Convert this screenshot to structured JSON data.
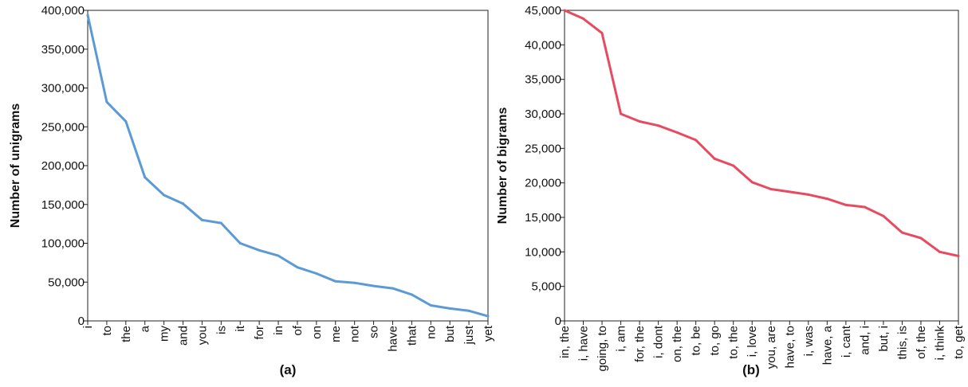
{
  "chart_data": [
    {
      "type": "line",
      "caption": "(a)",
      "ylabel": "Number of unigrams",
      "xlabel": "",
      "ylim": [
        0,
        400000
      ],
      "yticks": [
        0,
        50000,
        100000,
        150000,
        200000,
        250000,
        300000,
        350000,
        400000
      ],
      "ytick_labels": [
        "0",
        "50,000",
        "100,000",
        "150,000",
        "200,000",
        "250,000",
        "300,000",
        "350,000",
        "400,000"
      ],
      "grid": false,
      "color": "#5b9bd5",
      "categories": [
        "i",
        "to",
        "the",
        "a",
        "my",
        "and",
        "you",
        "is",
        "it",
        "for",
        "in",
        "of",
        "on",
        "me",
        "not",
        "so",
        "have",
        "that",
        "no",
        "but",
        "just",
        "yet"
      ],
      "series": [
        {
          "values": [
            394000,
            282000,
            257000,
            185000,
            162000,
            151000,
            130000,
            126000,
            100000,
            91000,
            84000,
            69000,
            61000,
            51000,
            49000,
            45000,
            42000,
            34000,
            20000,
            16000,
            13000,
            6000
          ]
        }
      ]
    },
    {
      "type": "line",
      "caption": "(b)",
      "ylabel": "Number of bigrams",
      "xlabel": "",
      "ylim": [
        0,
        45000
      ],
      "yticks": [
        0,
        5000,
        10000,
        15000,
        20000,
        25000,
        30000,
        35000,
        40000,
        45000
      ],
      "ytick_labels": [
        "0",
        "5,000",
        "10,000",
        "15,000",
        "20,000",
        "25,000",
        "30,000",
        "35,000",
        "40,000",
        "45,000"
      ],
      "grid": false,
      "color": "#e84a5f",
      "categories": [
        "in, the",
        "i, have",
        "going, to",
        "i, am",
        "for, the",
        "i, dont",
        "on, the",
        "to, be",
        "to, go",
        "to, the",
        "i, love",
        "you, are",
        "have, to",
        "i, was",
        "have, a",
        "i, cant",
        "and, i",
        "but, i",
        "this, is",
        "of, the",
        "i, think",
        "to, get"
      ],
      "series": [
        {
          "values": [
            45000,
            43800,
            41700,
            30000,
            28900,
            28300,
            27300,
            26200,
            23500,
            22500,
            20100,
            19100,
            18700,
            18300,
            17700,
            16800,
            16500,
            15200,
            12800,
            12000,
            10000,
            9400
          ]
        }
      ]
    }
  ]
}
